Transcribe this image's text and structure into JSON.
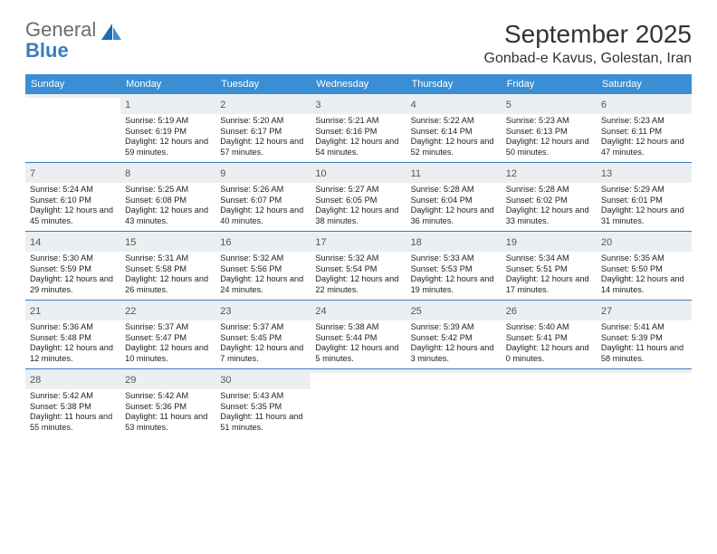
{
  "logo": {
    "text1": "General",
    "text2": "Blue"
  },
  "title": "September 2025",
  "location": "Gonbad-e Kavus, Golestan, Iran",
  "colors": {
    "header_band": "#3a8fd4",
    "week_divider": "#3a7cc0",
    "daynum_bg": "#eceff1",
    "logo_blue": "#3a7cc0",
    "logo_gray": "#6b6b6b"
  },
  "days_of_week": [
    "Sunday",
    "Monday",
    "Tuesday",
    "Wednesday",
    "Thursday",
    "Friday",
    "Saturday"
  ],
  "weeks": [
    [
      {
        "n": "",
        "lines": []
      },
      {
        "n": "1",
        "lines": [
          "Sunrise: 5:19 AM",
          "Sunset: 6:19 PM",
          "Daylight: 12 hours and 59 minutes."
        ]
      },
      {
        "n": "2",
        "lines": [
          "Sunrise: 5:20 AM",
          "Sunset: 6:17 PM",
          "Daylight: 12 hours and 57 minutes."
        ]
      },
      {
        "n": "3",
        "lines": [
          "Sunrise: 5:21 AM",
          "Sunset: 6:16 PM",
          "Daylight: 12 hours and 54 minutes."
        ]
      },
      {
        "n": "4",
        "lines": [
          "Sunrise: 5:22 AM",
          "Sunset: 6:14 PM",
          "Daylight: 12 hours and 52 minutes."
        ]
      },
      {
        "n": "5",
        "lines": [
          "Sunrise: 5:23 AM",
          "Sunset: 6:13 PM",
          "Daylight: 12 hours and 50 minutes."
        ]
      },
      {
        "n": "6",
        "lines": [
          "Sunrise: 5:23 AM",
          "Sunset: 6:11 PM",
          "Daylight: 12 hours and 47 minutes."
        ]
      }
    ],
    [
      {
        "n": "7",
        "lines": [
          "Sunrise: 5:24 AM",
          "Sunset: 6:10 PM",
          "Daylight: 12 hours and 45 minutes."
        ]
      },
      {
        "n": "8",
        "lines": [
          "Sunrise: 5:25 AM",
          "Sunset: 6:08 PM",
          "Daylight: 12 hours and 43 minutes."
        ]
      },
      {
        "n": "9",
        "lines": [
          "Sunrise: 5:26 AM",
          "Sunset: 6:07 PM",
          "Daylight: 12 hours and 40 minutes."
        ]
      },
      {
        "n": "10",
        "lines": [
          "Sunrise: 5:27 AM",
          "Sunset: 6:05 PM",
          "Daylight: 12 hours and 38 minutes."
        ]
      },
      {
        "n": "11",
        "lines": [
          "Sunrise: 5:28 AM",
          "Sunset: 6:04 PM",
          "Daylight: 12 hours and 36 minutes."
        ]
      },
      {
        "n": "12",
        "lines": [
          "Sunrise: 5:28 AM",
          "Sunset: 6:02 PM",
          "Daylight: 12 hours and 33 minutes."
        ]
      },
      {
        "n": "13",
        "lines": [
          "Sunrise: 5:29 AM",
          "Sunset: 6:01 PM",
          "Daylight: 12 hours and 31 minutes."
        ]
      }
    ],
    [
      {
        "n": "14",
        "lines": [
          "Sunrise: 5:30 AM",
          "Sunset: 5:59 PM",
          "Daylight: 12 hours and 29 minutes."
        ]
      },
      {
        "n": "15",
        "lines": [
          "Sunrise: 5:31 AM",
          "Sunset: 5:58 PM",
          "Daylight: 12 hours and 26 minutes."
        ]
      },
      {
        "n": "16",
        "lines": [
          "Sunrise: 5:32 AM",
          "Sunset: 5:56 PM",
          "Daylight: 12 hours and 24 minutes."
        ]
      },
      {
        "n": "17",
        "lines": [
          "Sunrise: 5:32 AM",
          "Sunset: 5:54 PM",
          "Daylight: 12 hours and 22 minutes."
        ]
      },
      {
        "n": "18",
        "lines": [
          "Sunrise: 5:33 AM",
          "Sunset: 5:53 PM",
          "Daylight: 12 hours and 19 minutes."
        ]
      },
      {
        "n": "19",
        "lines": [
          "Sunrise: 5:34 AM",
          "Sunset: 5:51 PM",
          "Daylight: 12 hours and 17 minutes."
        ]
      },
      {
        "n": "20",
        "lines": [
          "Sunrise: 5:35 AM",
          "Sunset: 5:50 PM",
          "Daylight: 12 hours and 14 minutes."
        ]
      }
    ],
    [
      {
        "n": "21",
        "lines": [
          "Sunrise: 5:36 AM",
          "Sunset: 5:48 PM",
          "Daylight: 12 hours and 12 minutes."
        ]
      },
      {
        "n": "22",
        "lines": [
          "Sunrise: 5:37 AM",
          "Sunset: 5:47 PM",
          "Daylight: 12 hours and 10 minutes."
        ]
      },
      {
        "n": "23",
        "lines": [
          "Sunrise: 5:37 AM",
          "Sunset: 5:45 PM",
          "Daylight: 12 hours and 7 minutes."
        ]
      },
      {
        "n": "24",
        "lines": [
          "Sunrise: 5:38 AM",
          "Sunset: 5:44 PM",
          "Daylight: 12 hours and 5 minutes."
        ]
      },
      {
        "n": "25",
        "lines": [
          "Sunrise: 5:39 AM",
          "Sunset: 5:42 PM",
          "Daylight: 12 hours and 3 minutes."
        ]
      },
      {
        "n": "26",
        "lines": [
          "Sunrise: 5:40 AM",
          "Sunset: 5:41 PM",
          "Daylight: 12 hours and 0 minutes."
        ]
      },
      {
        "n": "27",
        "lines": [
          "Sunrise: 5:41 AM",
          "Sunset: 5:39 PM",
          "Daylight: 11 hours and 58 minutes."
        ]
      }
    ],
    [
      {
        "n": "28",
        "lines": [
          "Sunrise: 5:42 AM",
          "Sunset: 5:38 PM",
          "Daylight: 11 hours and 55 minutes."
        ]
      },
      {
        "n": "29",
        "lines": [
          "Sunrise: 5:42 AM",
          "Sunset: 5:36 PM",
          "Daylight: 11 hours and 53 minutes."
        ]
      },
      {
        "n": "30",
        "lines": [
          "Sunrise: 5:43 AM",
          "Sunset: 5:35 PM",
          "Daylight: 11 hours and 51 minutes."
        ]
      },
      {
        "n": "",
        "lines": []
      },
      {
        "n": "",
        "lines": []
      },
      {
        "n": "",
        "lines": []
      },
      {
        "n": "",
        "lines": []
      }
    ]
  ]
}
